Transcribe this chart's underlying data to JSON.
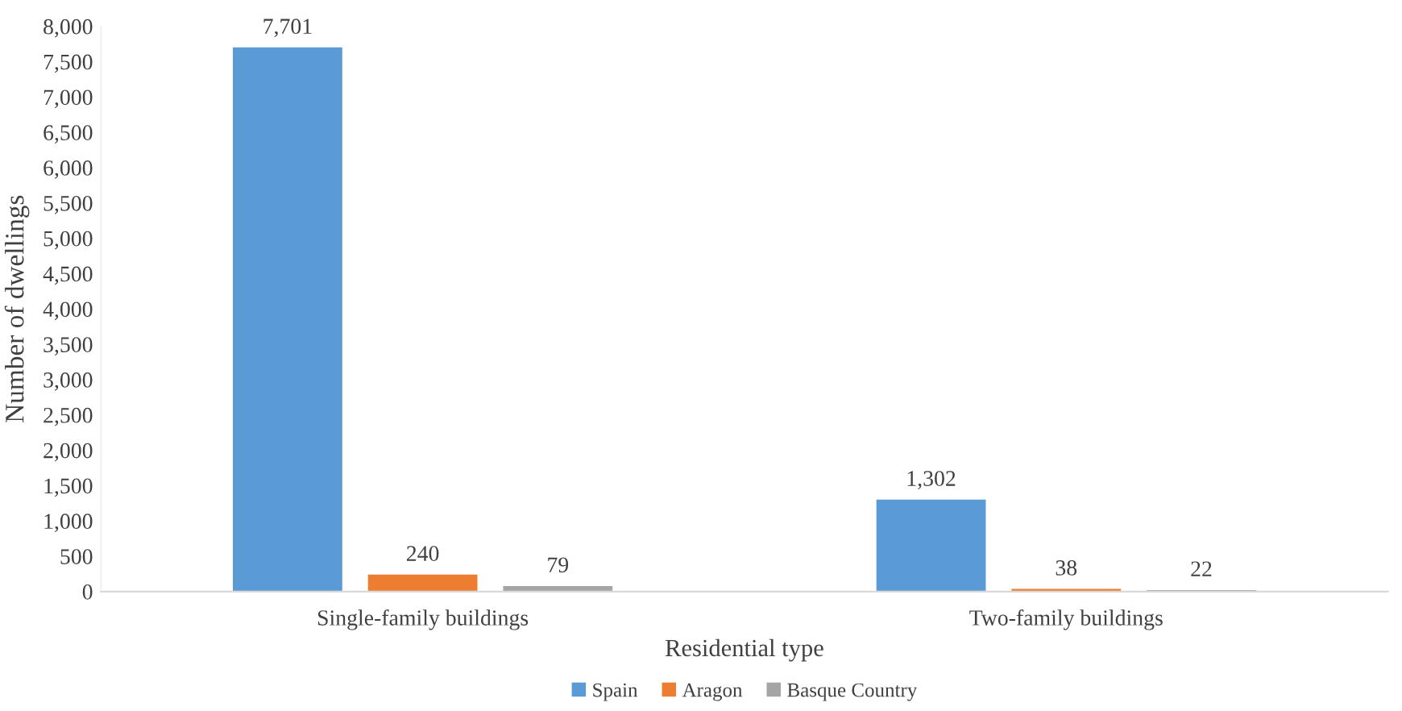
{
  "chart_data": {
    "type": "bar",
    "xlabel": "Residential type",
    "ylabel": "Number of dwellings",
    "categories": [
      "Single-family buildings",
      "Two-family buildings"
    ],
    "series": [
      {
        "name": "Spain",
        "color": "#5b9bd5",
        "values": [
          7701,
          1302
        ],
        "value_labels": [
          "7,701",
          "1,302"
        ]
      },
      {
        "name": "Aragon",
        "color": "#ed7d31",
        "values": [
          240,
          38
        ],
        "value_labels": [
          "240",
          "38"
        ]
      },
      {
        "name": "Basque Country",
        "color": "#a5a5a5",
        "values": [
          79,
          22
        ],
        "value_labels": [
          "79",
          "22"
        ]
      }
    ],
    "ylim": [
      0,
      8000
    ],
    "yticks": [
      0,
      500,
      {
        "value": 1000,
        "label": "1,000"
      },
      {
        "value": 1500,
        "label": "1,500"
      },
      {
        "value": 2000,
        "label": "2,000"
      },
      {
        "value": 2500,
        "label": "2,500"
      },
      {
        "value": 3000,
        "label": "3,000"
      },
      {
        "value": 3500,
        "label": "3,500"
      },
      {
        "value": 4000,
        "label": "4,000"
      },
      {
        "value": 4500,
        "label": "4,500"
      },
      {
        "value": 5000,
        "label": "5,000"
      },
      {
        "value": 5500,
        "label": "5,500"
      },
      {
        "value": 6000,
        "label": "6,000"
      },
      {
        "value": 6500,
        "label": "6,500"
      },
      {
        "value": 7000,
        "label": "7,000"
      },
      {
        "value": 7500,
        "label": "7,500"
      },
      {
        "value": 8000,
        "label": "8,000"
      }
    ],
    "grid": false,
    "legend": "bottom"
  }
}
